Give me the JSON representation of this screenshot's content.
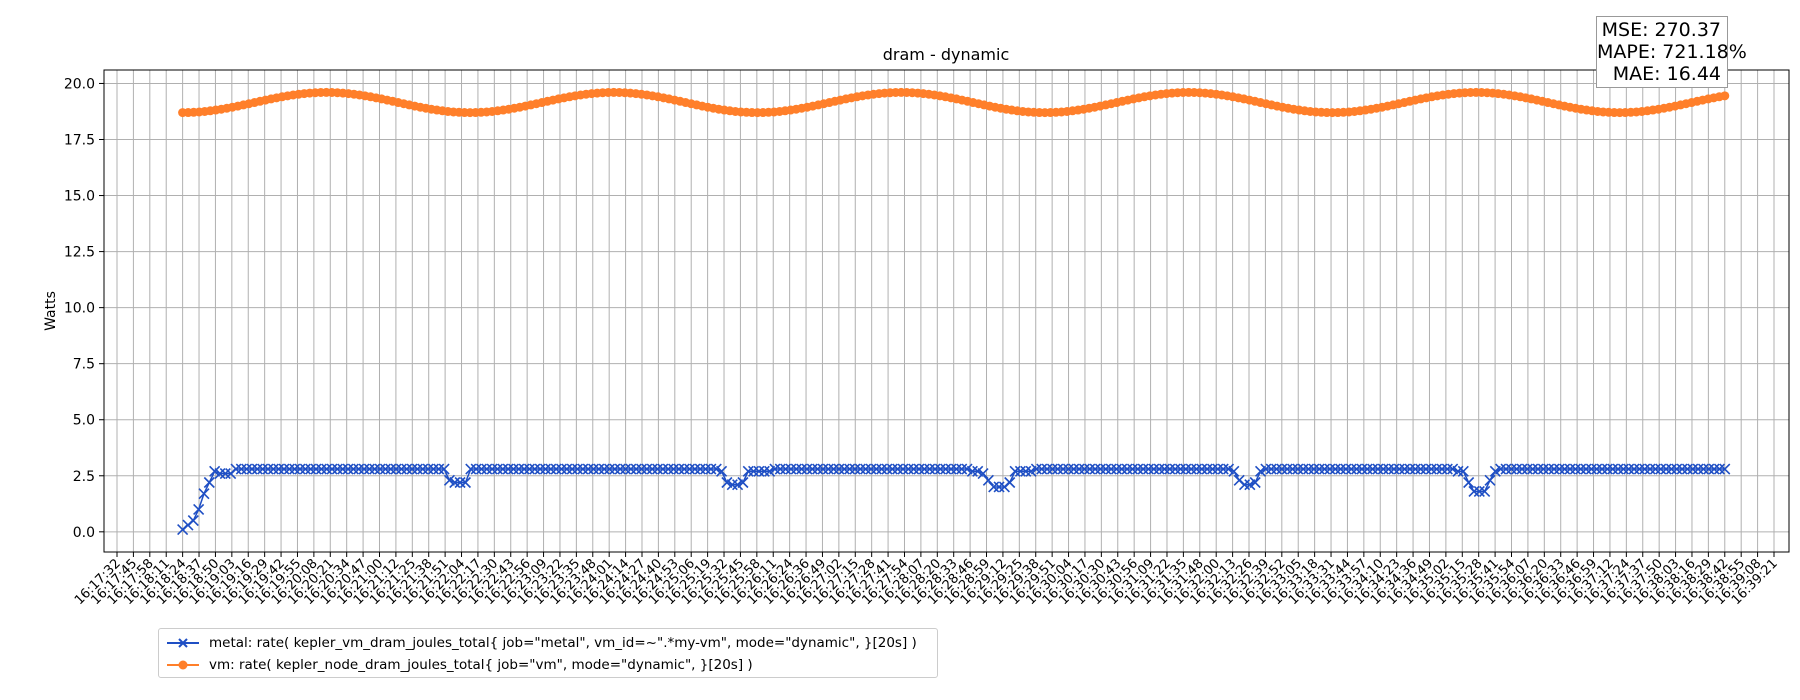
{
  "chart_data": {
    "type": "line",
    "title": "dram - dynamic",
    "xlabel": "",
    "ylabel": "Watts",
    "ylim": [
      -0.9,
      20.6
    ],
    "yticks": [
      0.0,
      2.5,
      5.0,
      7.5,
      10.0,
      12.5,
      15.0,
      17.5,
      20.0
    ],
    "ytick_labels": [
      "0.0",
      "2.5",
      "5.0",
      "7.5",
      "10.0",
      "12.5",
      "15.0",
      "17.5",
      "20.0"
    ],
    "grid": true,
    "legend_position": "lower-left-outside",
    "xtick_labels": [
      "16:17:32",
      "16:17:45",
      "16:17:58",
      "16:18:11",
      "16:18:24",
      "16:18:37",
      "16:18:50",
      "16:19:03",
      "16:19:16",
      "16:19:29",
      "16:19:42",
      "16:19:55",
      "16:20:08",
      "16:20:21",
      "16:20:34",
      "16:20:47",
      "16:21:00",
      "16:21:12",
      "16:21:25",
      "16:21:38",
      "16:21:51",
      "16:22:04",
      "16:22:17",
      "16:22:30",
      "16:22:43",
      "16:22:56",
      "16:23:09",
      "16:23:22",
      "16:23:35",
      "16:23:48",
      "16:24:01",
      "16:24:14",
      "16:24:27",
      "16:24:40",
      "16:24:53",
      "16:25:06",
      "16:25:19",
      "16:25:32",
      "16:25:45",
      "16:25:58",
      "16:26:11",
      "16:26:24",
      "16:26:36",
      "16:26:49",
      "16:27:02",
      "16:27:15",
      "16:27:28",
      "16:27:41",
      "16:27:54",
      "16:28:07",
      "16:28:20",
      "16:28:33",
      "16:28:46",
      "16:28:59",
      "16:29:12",
      "16:29:25",
      "16:29:38",
      "16:29:51",
      "16:30:04",
      "16:30:17",
      "16:30:30",
      "16:30:43",
      "16:30:56",
      "16:31:09",
      "16:31:22",
      "16:31:35",
      "16:31:48",
      "16:32:00",
      "16:32:13",
      "16:32:26",
      "16:32:39",
      "16:32:52",
      "16:33:05",
      "16:33:18",
      "16:33:31",
      "16:33:44",
      "16:33:57",
      "16:34:10",
      "16:34:23",
      "16:34:36",
      "16:34:49",
      "16:35:02",
      "16:35:15",
      "16:35:28",
      "16:35:41",
      "16:35:54",
      "16:36:07",
      "16:36:20",
      "16:36:33",
      "16:36:46",
      "16:36:59",
      "16:37:12",
      "16:37:24",
      "16:37:37",
      "16:37:50",
      "16:38:03",
      "16:38:16",
      "16:38:29",
      "16:38:42",
      "16:38:55",
      "16:39:08",
      "16:39:21"
    ],
    "x_start_label": "16:18:24",
    "x_end_label": "16:38:42",
    "series": [
      {
        "name": "metal: rate( kepler_vm_dram_joules_total{ job=\"metal\", vm_id=~\".*my-vm\", mode=\"dynamic\", }[20s] )",
        "color": "#1f4fc4",
        "marker": "x",
        "values": [
          0.1,
          0.3,
          0.5,
          1.0,
          1.7,
          2.2,
          2.7,
          2.6,
          2.6,
          2.6,
          2.8,
          2.8,
          2.8,
          2.8,
          2.8,
          2.8,
          2.8,
          2.8,
          2.8,
          2.8,
          2.8,
          2.8,
          2.8,
          2.8,
          2.8,
          2.8,
          2.8,
          2.8,
          2.8,
          2.8,
          2.8,
          2.8,
          2.8,
          2.8,
          2.8,
          2.8,
          2.8,
          2.8,
          2.8,
          2.8,
          2.8,
          2.8,
          2.8,
          2.8,
          2.8,
          2.8,
          2.8,
          2.8,
          2.8,
          2.8,
          2.3,
          2.2,
          2.2,
          2.2,
          2.8,
          2.8,
          2.8,
          2.8,
          2.8,
          2.8,
          2.8,
          2.8,
          2.8,
          2.8,
          2.8,
          2.8,
          2.8,
          2.8,
          2.8,
          2.8,
          2.8,
          2.8,
          2.8,
          2.8,
          2.8,
          2.8,
          2.8,
          2.8,
          2.8,
          2.8,
          2.8,
          2.8,
          2.8,
          2.8,
          2.8,
          2.8,
          2.8,
          2.8,
          2.8,
          2.8,
          2.8,
          2.8,
          2.8,
          2.8,
          2.8,
          2.8,
          2.8,
          2.8,
          2.8,
          2.8,
          2.8,
          2.7,
          2.2,
          2.1,
          2.1,
          2.2,
          2.7,
          2.7,
          2.7,
          2.7,
          2.7,
          2.8,
          2.8,
          2.8,
          2.8,
          2.8,
          2.8,
          2.8,
          2.8,
          2.8,
          2.8,
          2.8,
          2.8,
          2.8,
          2.8,
          2.8,
          2.8,
          2.8,
          2.8,
          2.8,
          2.8,
          2.8,
          2.8,
          2.8,
          2.8,
          2.8,
          2.8,
          2.8,
          2.8,
          2.8,
          2.8,
          2.8,
          2.8,
          2.8,
          2.8,
          2.8,
          2.8,
          2.8,
          2.7,
          2.7,
          2.6,
          2.3,
          2.0,
          2.0,
          2.0,
          2.2,
          2.7,
          2.7,
          2.7,
          2.7,
          2.8,
          2.8,
          2.8,
          2.8,
          2.8,
          2.8,
          2.8,
          2.8,
          2.8,
          2.8,
          2.8,
          2.8,
          2.8,
          2.8,
          2.8,
          2.8,
          2.8,
          2.8,
          2.8,
          2.8,
          2.8,
          2.8,
          2.8,
          2.8,
          2.8,
          2.8,
          2.8,
          2.8,
          2.8,
          2.8,
          2.8,
          2.8,
          2.8,
          2.8,
          2.8,
          2.8,
          2.8,
          2.7,
          2.3,
          2.1,
          2.1,
          2.2,
          2.7,
          2.8,
          2.8,
          2.8,
          2.8,
          2.8,
          2.8,
          2.8,
          2.8,
          2.8,
          2.8,
          2.8,
          2.8,
          2.8,
          2.8,
          2.8,
          2.8,
          2.8,
          2.8,
          2.8,
          2.8,
          2.8,
          2.8,
          2.8,
          2.8,
          2.8,
          2.8,
          2.8,
          2.8,
          2.8,
          2.8,
          2.8,
          2.8,
          2.8,
          2.8,
          2.8,
          2.8,
          2.7,
          2.7,
          2.2,
          1.8,
          1.8,
          1.8,
          2.3,
          2.7,
          2.8,
          2.8,
          2.8,
          2.8,
          2.8,
          2.8,
          2.8,
          2.8,
          2.8,
          2.8,
          2.8,
          2.8,
          2.8,
          2.8,
          2.8,
          2.8,
          2.8,
          2.8,
          2.8,
          2.8,
          2.8,
          2.8,
          2.8,
          2.8,
          2.8,
          2.8,
          2.8,
          2.8,
          2.8,
          2.8,
          2.8,
          2.8,
          2.8,
          2.8,
          2.8,
          2.8,
          2.8,
          2.8,
          2.8,
          2.8,
          2.8,
          2.8,
          2.8
        ]
      },
      {
        "name": "vm: rate( kepler_node_dram_joules_total{ job=\"vm\", mode=\"dynamic\", }[20s] )",
        "color": "#ff7f2a",
        "marker": "o",
        "model": "sinusoid",
        "mean": 19.15,
        "amplitude": 0.45,
        "period_points": 52,
        "phase_points": 13,
        "points": 280
      }
    ]
  },
  "metrics": {
    "mse": "MSE: 270.37",
    "mape": "MAPE: 721.18%",
    "mae": "MAE: 16.44"
  }
}
